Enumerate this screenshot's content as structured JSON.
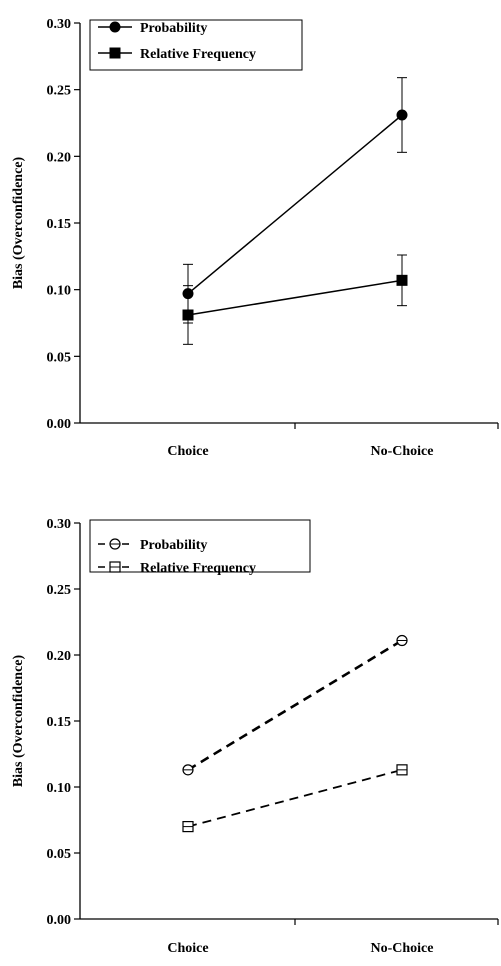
{
  "chart_data": [
    {
      "type": "line",
      "style": "solid",
      "title": "",
      "xlabel": "",
      "ylabel": "Bias (Overconfidence)",
      "categories": [
        "Choice",
        "No-Choice"
      ],
      "ylim": [
        0,
        0.3
      ],
      "yticks": [
        "0.00",
        "0.05",
        "0.10",
        "0.15",
        "0.20",
        "0.25",
        "0.30"
      ],
      "grid": false,
      "legend_position": "top-left",
      "error_bars": true,
      "series": [
        {
          "name": "Probability",
          "marker": "filled-circle",
          "values": [
            0.097,
            0.231
          ],
          "error_low": [
            0.022,
            0.028
          ],
          "error_high": [
            0.022,
            0.028
          ]
        },
        {
          "name": "Relative Frequency",
          "marker": "filled-square",
          "values": [
            0.081,
            0.107
          ],
          "error_low": [
            0.022,
            0.019
          ],
          "error_high": [
            0.022,
            0.019
          ]
        }
      ]
    },
    {
      "type": "line",
      "style": "dashed",
      "title": "",
      "xlabel": "",
      "ylabel": "Bias (Overconfidence)",
      "categories": [
        "Choice",
        "No-Choice"
      ],
      "ylim": [
        0,
        0.3
      ],
      "yticks": [
        "0.00",
        "0.05",
        "0.10",
        "0.15",
        "0.20",
        "0.25",
        "0.30"
      ],
      "grid": false,
      "legend_position": "top-left",
      "error_bars": false,
      "series": [
        {
          "name": "Probability",
          "marker": "open-circle",
          "values": [
            0.113,
            0.211
          ]
        },
        {
          "name": "Relative Frequency",
          "marker": "open-square",
          "values": [
            0.07,
            0.113
          ]
        }
      ]
    }
  ]
}
